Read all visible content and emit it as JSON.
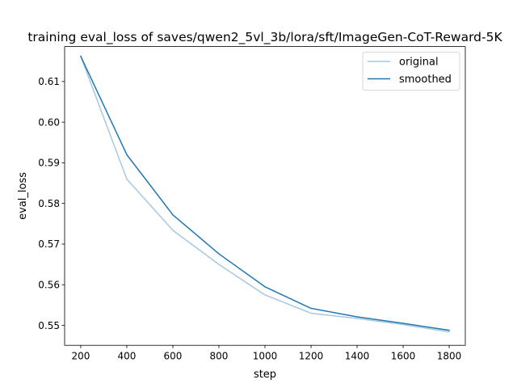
{
  "chart_data": {
    "type": "line",
    "title": "training eval_loss of saves/qwen2_5vl_3b/lora/sft/ImageGen-CoT-Reward-5K",
    "xlabel": "step",
    "ylabel": "eval_loss",
    "x": [
      200,
      400,
      600,
      800,
      1000,
      1200,
      1400,
      1600,
      1800
    ],
    "xlim": [
      130,
      1870
    ],
    "ylim": [
      0.5451,
      0.6186
    ],
    "xticks": [
      200,
      400,
      600,
      800,
      1000,
      1200,
      1400,
      1600,
      1800
    ],
    "yticks": [
      0.55,
      0.56,
      0.57,
      0.58,
      0.59,
      0.6,
      0.61
    ],
    "ytick_labels": [
      "0.55",
      "0.56",
      "0.57",
      "0.58",
      "0.59",
      "0.60",
      "0.61"
    ],
    "grid": false,
    "legend_placement": "top-right",
    "series": [
      {
        "name": "original",
        "color": "#a6c8e1",
        "values": [
          0.6162,
          0.586,
          0.5734,
          0.565,
          0.5575,
          0.553,
          0.5517,
          0.5502,
          0.5484
        ]
      },
      {
        "name": "smoothed",
        "color": "#1f77b4",
        "values": [
          0.6162,
          0.592,
          0.5772,
          0.5676,
          0.5595,
          0.5542,
          0.5521,
          0.5505,
          0.5488
        ]
      }
    ]
  }
}
